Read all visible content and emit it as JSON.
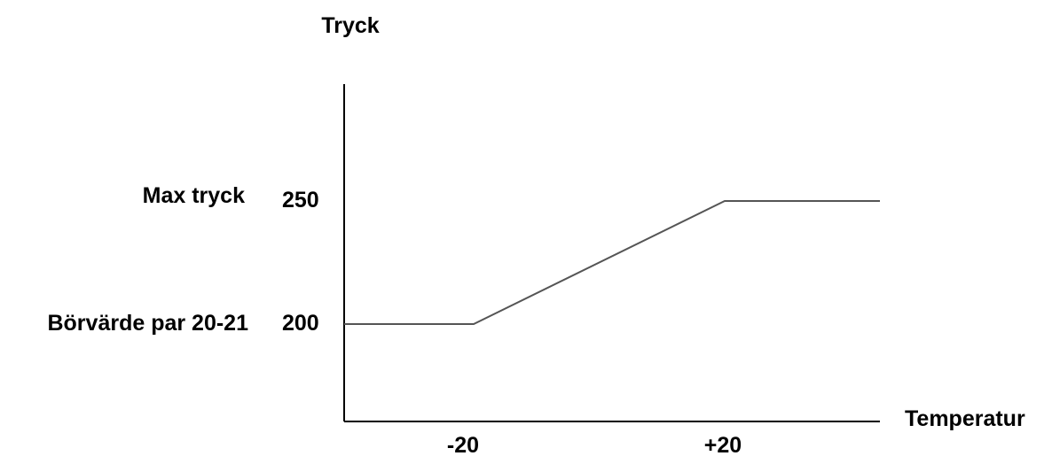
{
  "chart_data": {
    "type": "line",
    "title": "",
    "xlabel": "Temperatur",
    "ylabel": "Tryck",
    "xlim": [
      -40,
      50
    ],
    "ylim": [
      150,
      300
    ],
    "x_ticks": [
      {
        "value": -20,
        "label": "-20"
      },
      {
        "value": 20,
        "label": "+20"
      }
    ],
    "y_ticks": [
      {
        "value": 250,
        "label": "250",
        "annotation": "Max tryck"
      },
      {
        "value": 200,
        "label": "200",
        "annotation": "Börvärde par 20-21"
      }
    ],
    "series": [
      {
        "x": [
          -40,
          -20,
          20,
          45
        ],
        "y": [
          200,
          200,
          250,
          250
        ]
      }
    ],
    "grid": false,
    "legend": "none",
    "line_color": "#555555",
    "axis_color": "#000000"
  }
}
